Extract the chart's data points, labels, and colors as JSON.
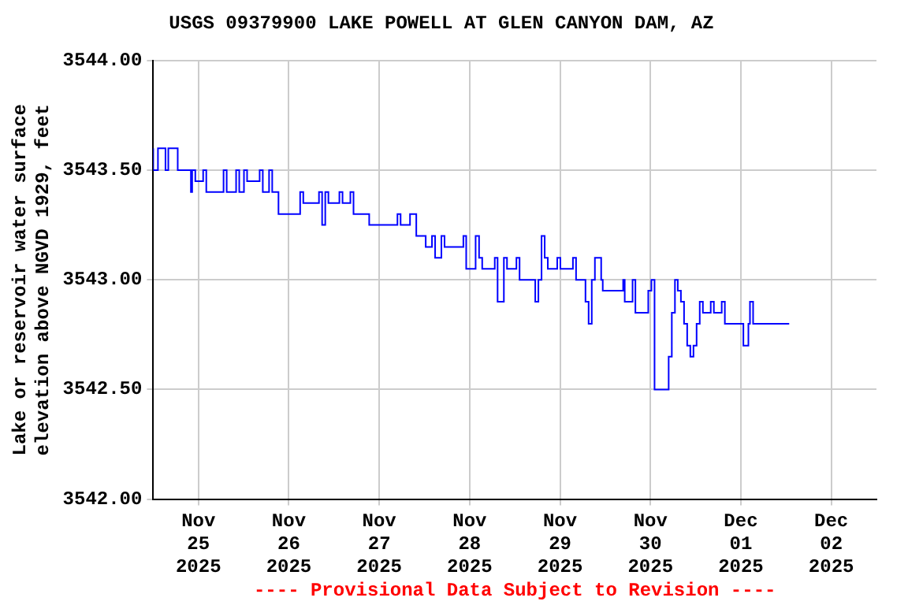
{
  "chart_data": {
    "type": "step",
    "title": "USGS 09379900 LAKE POWELL AT GLEN CANYON DAM, AZ",
    "ylabel": "Lake or reservoir water surface\nelevation above NGVD 1929, feet",
    "annotations": [
      "---- Provisional Data Subject to Revision ----"
    ],
    "x": [
      "2025-11-24T12:00",
      "2025-11-24T13:15",
      "2025-11-24T15:15",
      "2025-11-24T16:00",
      "2025-11-24T18:30",
      "2025-11-24T22:00",
      "2025-11-24T22:20",
      "2025-11-24T23:10",
      "2025-11-25T01:15",
      "2025-11-25T02:05",
      "2025-11-25T06:40",
      "2025-11-25T07:30",
      "2025-11-25T10:00",
      "2025-11-25T10:50",
      "2025-11-25T12:05",
      "2025-11-25T12:55",
      "2025-11-25T16:15",
      "2025-11-25T17:05",
      "2025-11-25T18:45",
      "2025-11-25T19:35",
      "2025-11-25T21:15",
      "2025-11-26T03:00",
      "2025-11-26T03:50",
      "2025-11-26T08:00",
      "2025-11-26T08:50",
      "2025-11-26T09:40",
      "2025-11-26T10:30",
      "2025-11-26T13:25",
      "2025-11-26T14:15",
      "2025-11-26T16:20",
      "2025-11-26T17:10",
      "2025-11-26T21:20",
      "2025-11-27T04:50",
      "2025-11-27T05:40",
      "2025-11-27T08:10",
      "2025-11-27T09:50",
      "2025-11-27T12:20",
      "2025-11-27T14:00",
      "2025-11-27T14:50",
      "2025-11-27T16:30",
      "2025-11-27T17:20",
      "2025-11-27T22:20",
      "2025-11-27T23:05",
      "2025-11-28T01:35",
      "2025-11-28T02:30",
      "2025-11-28T03:20",
      "2025-11-28T06:40",
      "2025-11-28T07:25",
      "2025-11-28T09:05",
      "2025-11-28T09:55",
      "2025-11-28T12:25",
      "2025-11-28T13:15",
      "2025-11-28T17:25",
      "2025-11-28T18:15",
      "2025-11-28T19:05",
      "2025-11-28T19:55",
      "2025-11-28T20:45",
      "2025-11-28T23:15",
      "2025-11-29T00:05",
      "2025-11-29T03:25",
      "2025-11-29T04:15",
      "2025-11-29T06:45",
      "2025-11-29T07:35",
      "2025-11-29T08:25",
      "2025-11-29T09:15",
      "2025-11-29T10:55",
      "2025-11-29T11:20",
      "2025-11-29T16:45",
      "2025-11-29T17:10",
      "2025-11-29T19:15",
      "2025-11-29T20:00",
      "2025-11-29T23:25",
      "2025-11-30T00:15",
      "2025-11-30T01:05",
      "2025-11-30T04:50",
      "2025-11-30T05:40",
      "2025-11-30T06:30",
      "2025-11-30T07:15",
      "2025-11-30T08:05",
      "2025-11-30T08:55",
      "2025-11-30T09:45",
      "2025-11-30T10:35",
      "2025-11-30T11:25",
      "2025-11-30T12:15",
      "2025-11-30T13:05",
      "2025-11-30T13:55",
      "2025-11-30T16:00",
      "2025-11-30T16:50",
      "2025-11-30T18:55",
      "2025-11-30T19:45",
      "2025-12-01T00:40",
      "2025-12-01T02:00",
      "2025-12-01T02:25",
      "2025-12-01T03:15",
      "2025-12-01T03:40",
      "2025-12-01T12:50"
    ],
    "series": [
      {
        "color": "#0000ff",
        "values": [
          3543.6,
          3543.5,
          3543.6,
          3543.5,
          3543.6,
          3543.5,
          3543.4,
          3543.5,
          3543.45,
          3543.5,
          3543.4,
          3543.5,
          3543.4,
          3543.5,
          3543.4,
          3543.5,
          3543.45,
          3543.5,
          3543.4,
          3543.5,
          3543.4,
          3543.3,
          3543.4,
          3543.35,
          3543.4,
          3543.25,
          3543.4,
          3543.35,
          3543.4,
          3543.35,
          3543.4,
          3543.3,
          3543.25,
          3543.3,
          3543.25,
          3543.3,
          3543.2,
          3543.15,
          3543.2,
          3543.1,
          3543.2,
          3543.15,
          3543.2,
          3543.05,
          3543.2,
          3543.1,
          3543.05,
          3543.1,
          3542.9,
          3543.1,
          3543.05,
          3543.1,
          3543.0,
          3542.9,
          3543.0,
          3543.2,
          3543.1,
          3543.05,
          3543.1,
          3543.05,
          3543.1,
          3543.0,
          3542.9,
          3542.8,
          3543.0,
          3543.1,
          3543.0,
          3542.95,
          3543.0,
          3542.9,
          3543.0,
          3542.85,
          3542.95,
          3543.0,
          3542.5,
          3542.65,
          3542.85,
          3543.0,
          3542.95,
          3542.9,
          3542.8,
          3542.7,
          3542.65,
          3542.7,
          3542.8,
          3542.9,
          3542.85,
          3542.9,
          3542.85,
          3542.9,
          3542.8,
          3542.7,
          3542.8,
          3542.9,
          3542.8,
          3542.8
        ]
      }
    ],
    "xlim": [
      "2025-11-24T12:00",
      "2025-12-02T12:00"
    ],
    "xticks": [
      {
        "value": "2025-11-25",
        "label": "Nov\n25\n2025"
      },
      {
        "value": "2025-11-26",
        "label": "Nov\n26\n2025"
      },
      {
        "value": "2025-11-27",
        "label": "Nov\n27\n2025"
      },
      {
        "value": "2025-11-28",
        "label": "Nov\n28\n2025"
      },
      {
        "value": "2025-11-29",
        "label": "Nov\n29\n2025"
      },
      {
        "value": "2025-11-30",
        "label": "Nov\n30\n2025"
      },
      {
        "value": "2025-12-01",
        "label": "Dec\n01\n2025"
      },
      {
        "value": "2025-12-02",
        "label": "Dec\n02\n2025"
      }
    ],
    "ylim": [
      3542,
      3544
    ],
    "yticks": [
      {
        "value": 3542,
        "label": "3542.00"
      },
      {
        "value": 3542.5,
        "label": "3542.50"
      },
      {
        "value": 3543,
        "label": "3543.00"
      },
      {
        "value": 3543.5,
        "label": "3543.50"
      },
      {
        "value": 3544,
        "label": "3544.00"
      }
    ],
    "grid": true
  }
}
